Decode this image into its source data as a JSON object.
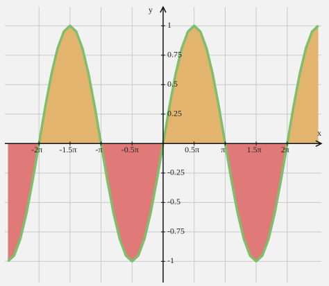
{
  "chart_data": {
    "type": "area",
    "x_label": "x",
    "y_label": "y",
    "x": [
      -2.5,
      -2.4,
      -2.3,
      -2.2,
      -2.1,
      -2,
      -1.9,
      -1.8,
      -1.7,
      -1.6,
      -1.5,
      -1.4,
      -1.3,
      -1.2,
      -1.1,
      -1,
      -0.9,
      -0.8,
      -0.7,
      -0.6,
      -0.5,
      -0.4,
      -0.3,
      -0.2,
      -0.1,
      0,
      0.1,
      0.2,
      0.3,
      0.4,
      0.5,
      0.6,
      0.7,
      0.8,
      0.9,
      1,
      1.1,
      1.2,
      1.3,
      1.4,
      1.5,
      1.6,
      1.7,
      1.8,
      1.9,
      2,
      2.1,
      2.2,
      2.3,
      2.4,
      2.5
    ],
    "values": [
      -1,
      -0.951,
      -0.809,
      -0.588,
      -0.309,
      0,
      0.309,
      0.588,
      0.809,
      0.951,
      1,
      0.951,
      0.809,
      0.588,
      0.309,
      0,
      -0.309,
      -0.588,
      -0.809,
      -0.951,
      -1,
      -0.951,
      -0.809,
      -0.588,
      -0.309,
      0,
      0.309,
      0.588,
      0.809,
      0.951,
      1,
      0.951,
      0.809,
      0.588,
      0.309,
      0,
      -0.309,
      -0.588,
      -0.809,
      -0.951,
      -1,
      -0.951,
      -0.809,
      -0.588,
      -0.309,
      0,
      0.309,
      0.588,
      0.809,
      0.951,
      1
    ],
    "color": "#7dbf6b",
    "positive_fill": "#e2b46e",
    "negative_fill": "#e07a78",
    "xlim": [
      -2.55,
      2.55
    ],
    "ylim": [
      -1.18,
      1.16
    ],
    "xticks": [
      {
        "value": -2,
        "label": "-2π"
      },
      {
        "value": -1.5,
        "label": "-1.5π"
      },
      {
        "value": -1,
        "label": "-π"
      },
      {
        "value": -0.5,
        "label": "-0.5π"
      },
      {
        "value": 0.5,
        "label": "0.5π"
      },
      {
        "value": 1,
        "label": "π"
      },
      {
        "value": 1.5,
        "label": "1.5π"
      },
      {
        "value": 2,
        "label": "2π"
      }
    ],
    "yticks": [
      -1,
      -0.75,
      -0.5,
      -0.25,
      0.25,
      0.5,
      0.75,
      1
    ],
    "grid": true
  }
}
